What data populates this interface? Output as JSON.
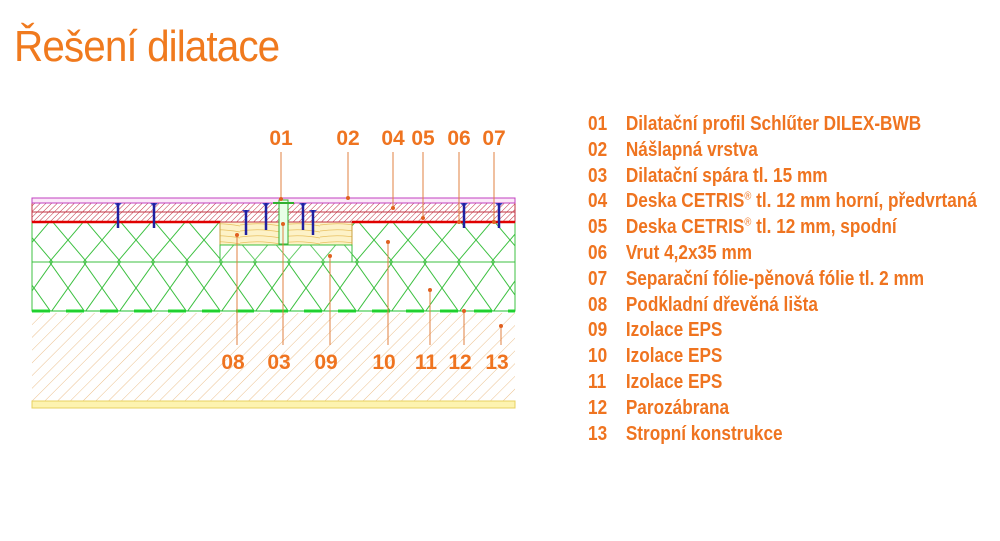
{
  "title": "Řešení dilatace",
  "accent": "#ef7420",
  "callouts_top": [
    "01",
    "02",
    "04",
    "05",
    "06",
    "07"
  ],
  "callouts_bottom": [
    "08",
    "03",
    "09",
    "10",
    "11",
    "12",
    "13"
  ],
  "legend": [
    {
      "num": "01",
      "text": "Dilatační profil Schlűter DILEX-BWB"
    },
    {
      "num": "02",
      "text": "Nášlapná vrstva"
    },
    {
      "num": "03",
      "text": "Dilatační spára tl. 15 mm"
    },
    {
      "num": "04",
      "text": "Deska CETRIS",
      "sup": "®",
      "rest": " tl. 12 mm horní, předvrtaná"
    },
    {
      "num": "05",
      "text": "Deska CETRIS",
      "sup": "®",
      "rest": " tl. 12 mm, spodní"
    },
    {
      "num": "06",
      "text": "Vrut 4,2x35 mm"
    },
    {
      "num": "07",
      "text": "Separační fólie-pěnová fólie tl. 2 mm"
    },
    {
      "num": "08",
      "text": "Podkladní dřevěná lišta"
    },
    {
      "num": "09",
      "text": "Izolace EPS"
    },
    {
      "num": "10",
      "text": "Izolace EPS"
    },
    {
      "num": "11",
      "text": "Izolace EPS"
    },
    {
      "num": "12",
      "text": "Parozábrana"
    },
    {
      "num": "13",
      "text": "Stropní konstrukce"
    }
  ]
}
